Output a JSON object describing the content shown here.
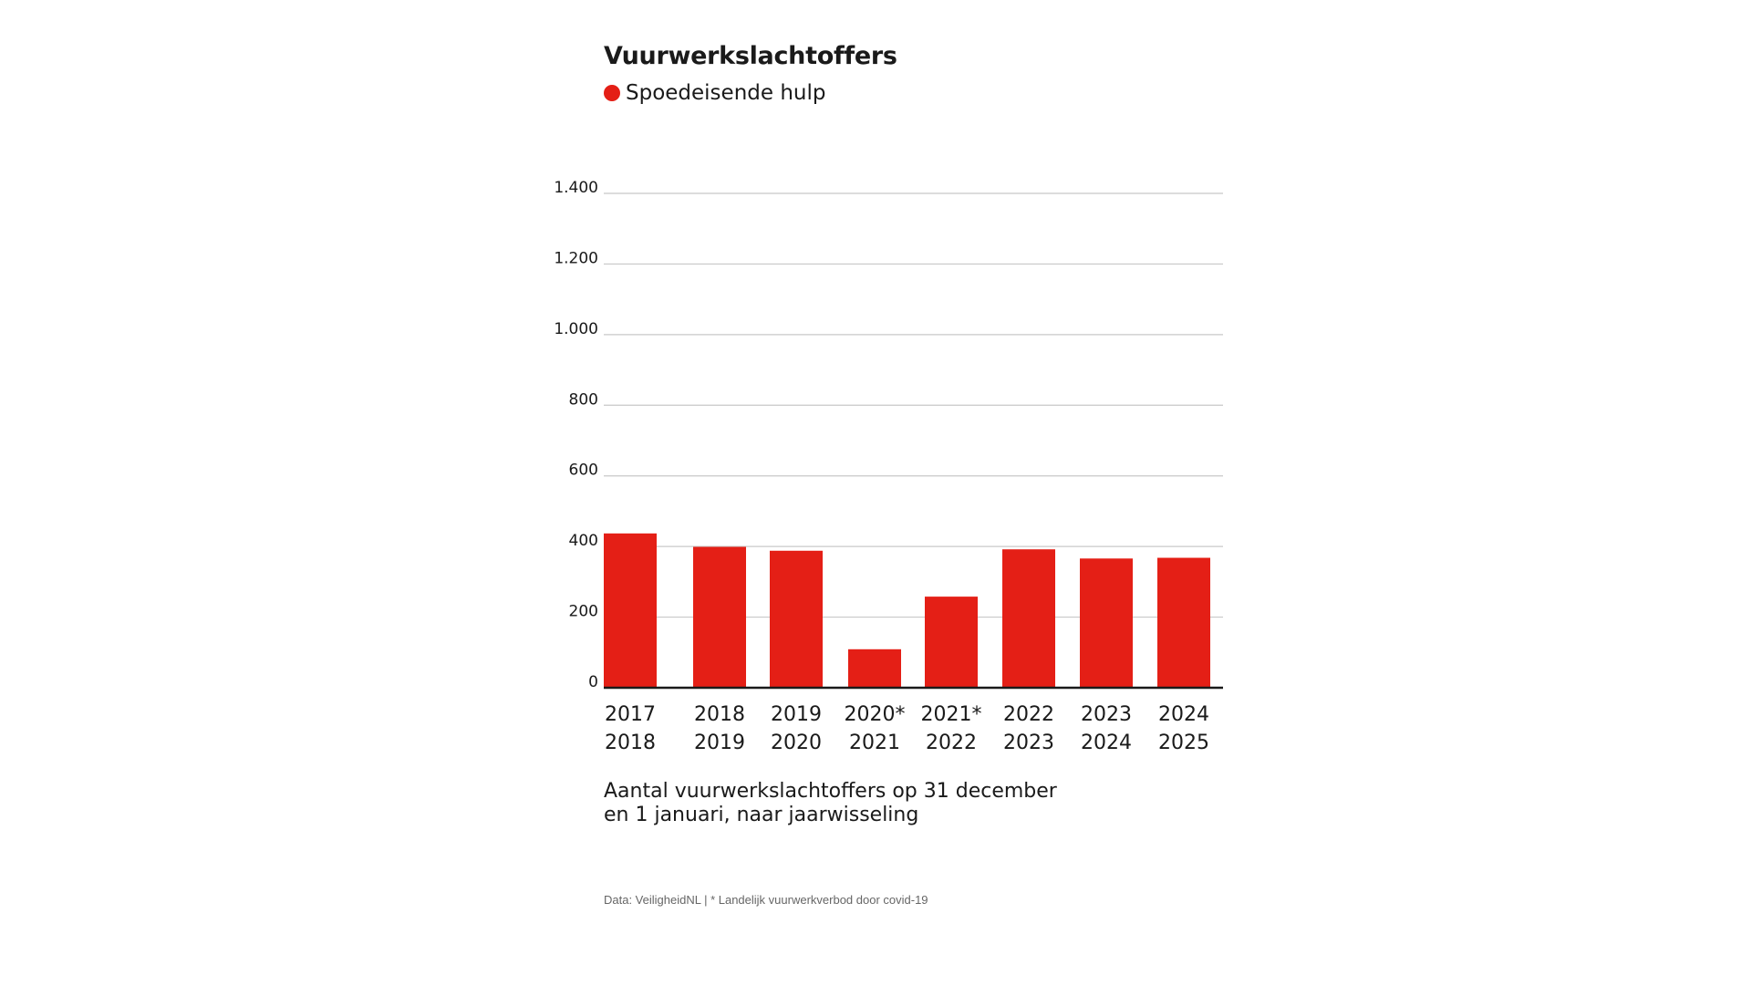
{
  "chart_data": {
    "type": "bar",
    "title": "Vuurwerkslachtoffers",
    "legend": [
      {
        "label": "Spoedeisende hulp",
        "color": "#e41f16"
      }
    ],
    "categories": [
      [
        "2017",
        "2018"
      ],
      [
        "2018",
        "2019"
      ],
      [
        "2019",
        "2020"
      ],
      [
        "2020*",
        "2021"
      ],
      [
        "2021*",
        "2022"
      ],
      [
        "2022",
        "2023"
      ],
      [
        "2023",
        "2024"
      ],
      [
        "2024",
        "2025"
      ]
    ],
    "values": [
      437,
      399,
      388,
      109,
      258,
      392,
      366,
      368
    ],
    "yticks": [
      0,
      200,
      400,
      600,
      800,
      1000,
      1200,
      1400
    ],
    "ytick_labels": [
      "0",
      "200",
      "400",
      "600",
      "800",
      "1.000",
      "1.200",
      "1.400"
    ],
    "ylim": [
      0,
      1400
    ],
    "grid": true,
    "bar_color": "#e41f16",
    "subtitle_lines": [
      "Aantal vuurwerkslachtoffers op 31 december",
      "en 1 januari, naar jaarwisseling"
    ],
    "source": "Data: VeiligheidNL | * Landelijk vuurwerkverbod door covid-19"
  }
}
